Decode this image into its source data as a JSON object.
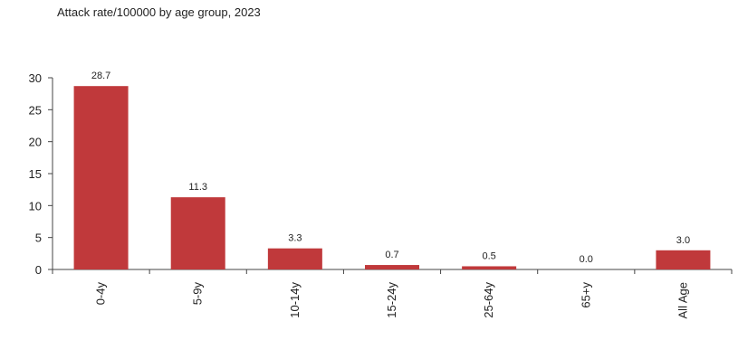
{
  "chart_data": {
    "type": "bar",
    "title": "Attack rate/100000 by age group, 2023",
    "xlabel": "",
    "ylabel": "",
    "categories": [
      "0-4y",
      "5-9y",
      "10-14y",
      "15-24y",
      "25-64y",
      "65+y",
      "All Age"
    ],
    "values": [
      28.7,
      11.3,
      3.3,
      0.7,
      0.5,
      0.0,
      3.0
    ],
    "data_labels": [
      "28.7",
      "11.3",
      "3.3",
      "0.7",
      "0.5",
      "0.0",
      "3.0"
    ],
    "ylim": [
      0,
      30
    ],
    "yticks": [
      0,
      5,
      10,
      15,
      20,
      25,
      30
    ],
    "bar_color": "#c0393b",
    "grid": false,
    "legend": "none"
  }
}
